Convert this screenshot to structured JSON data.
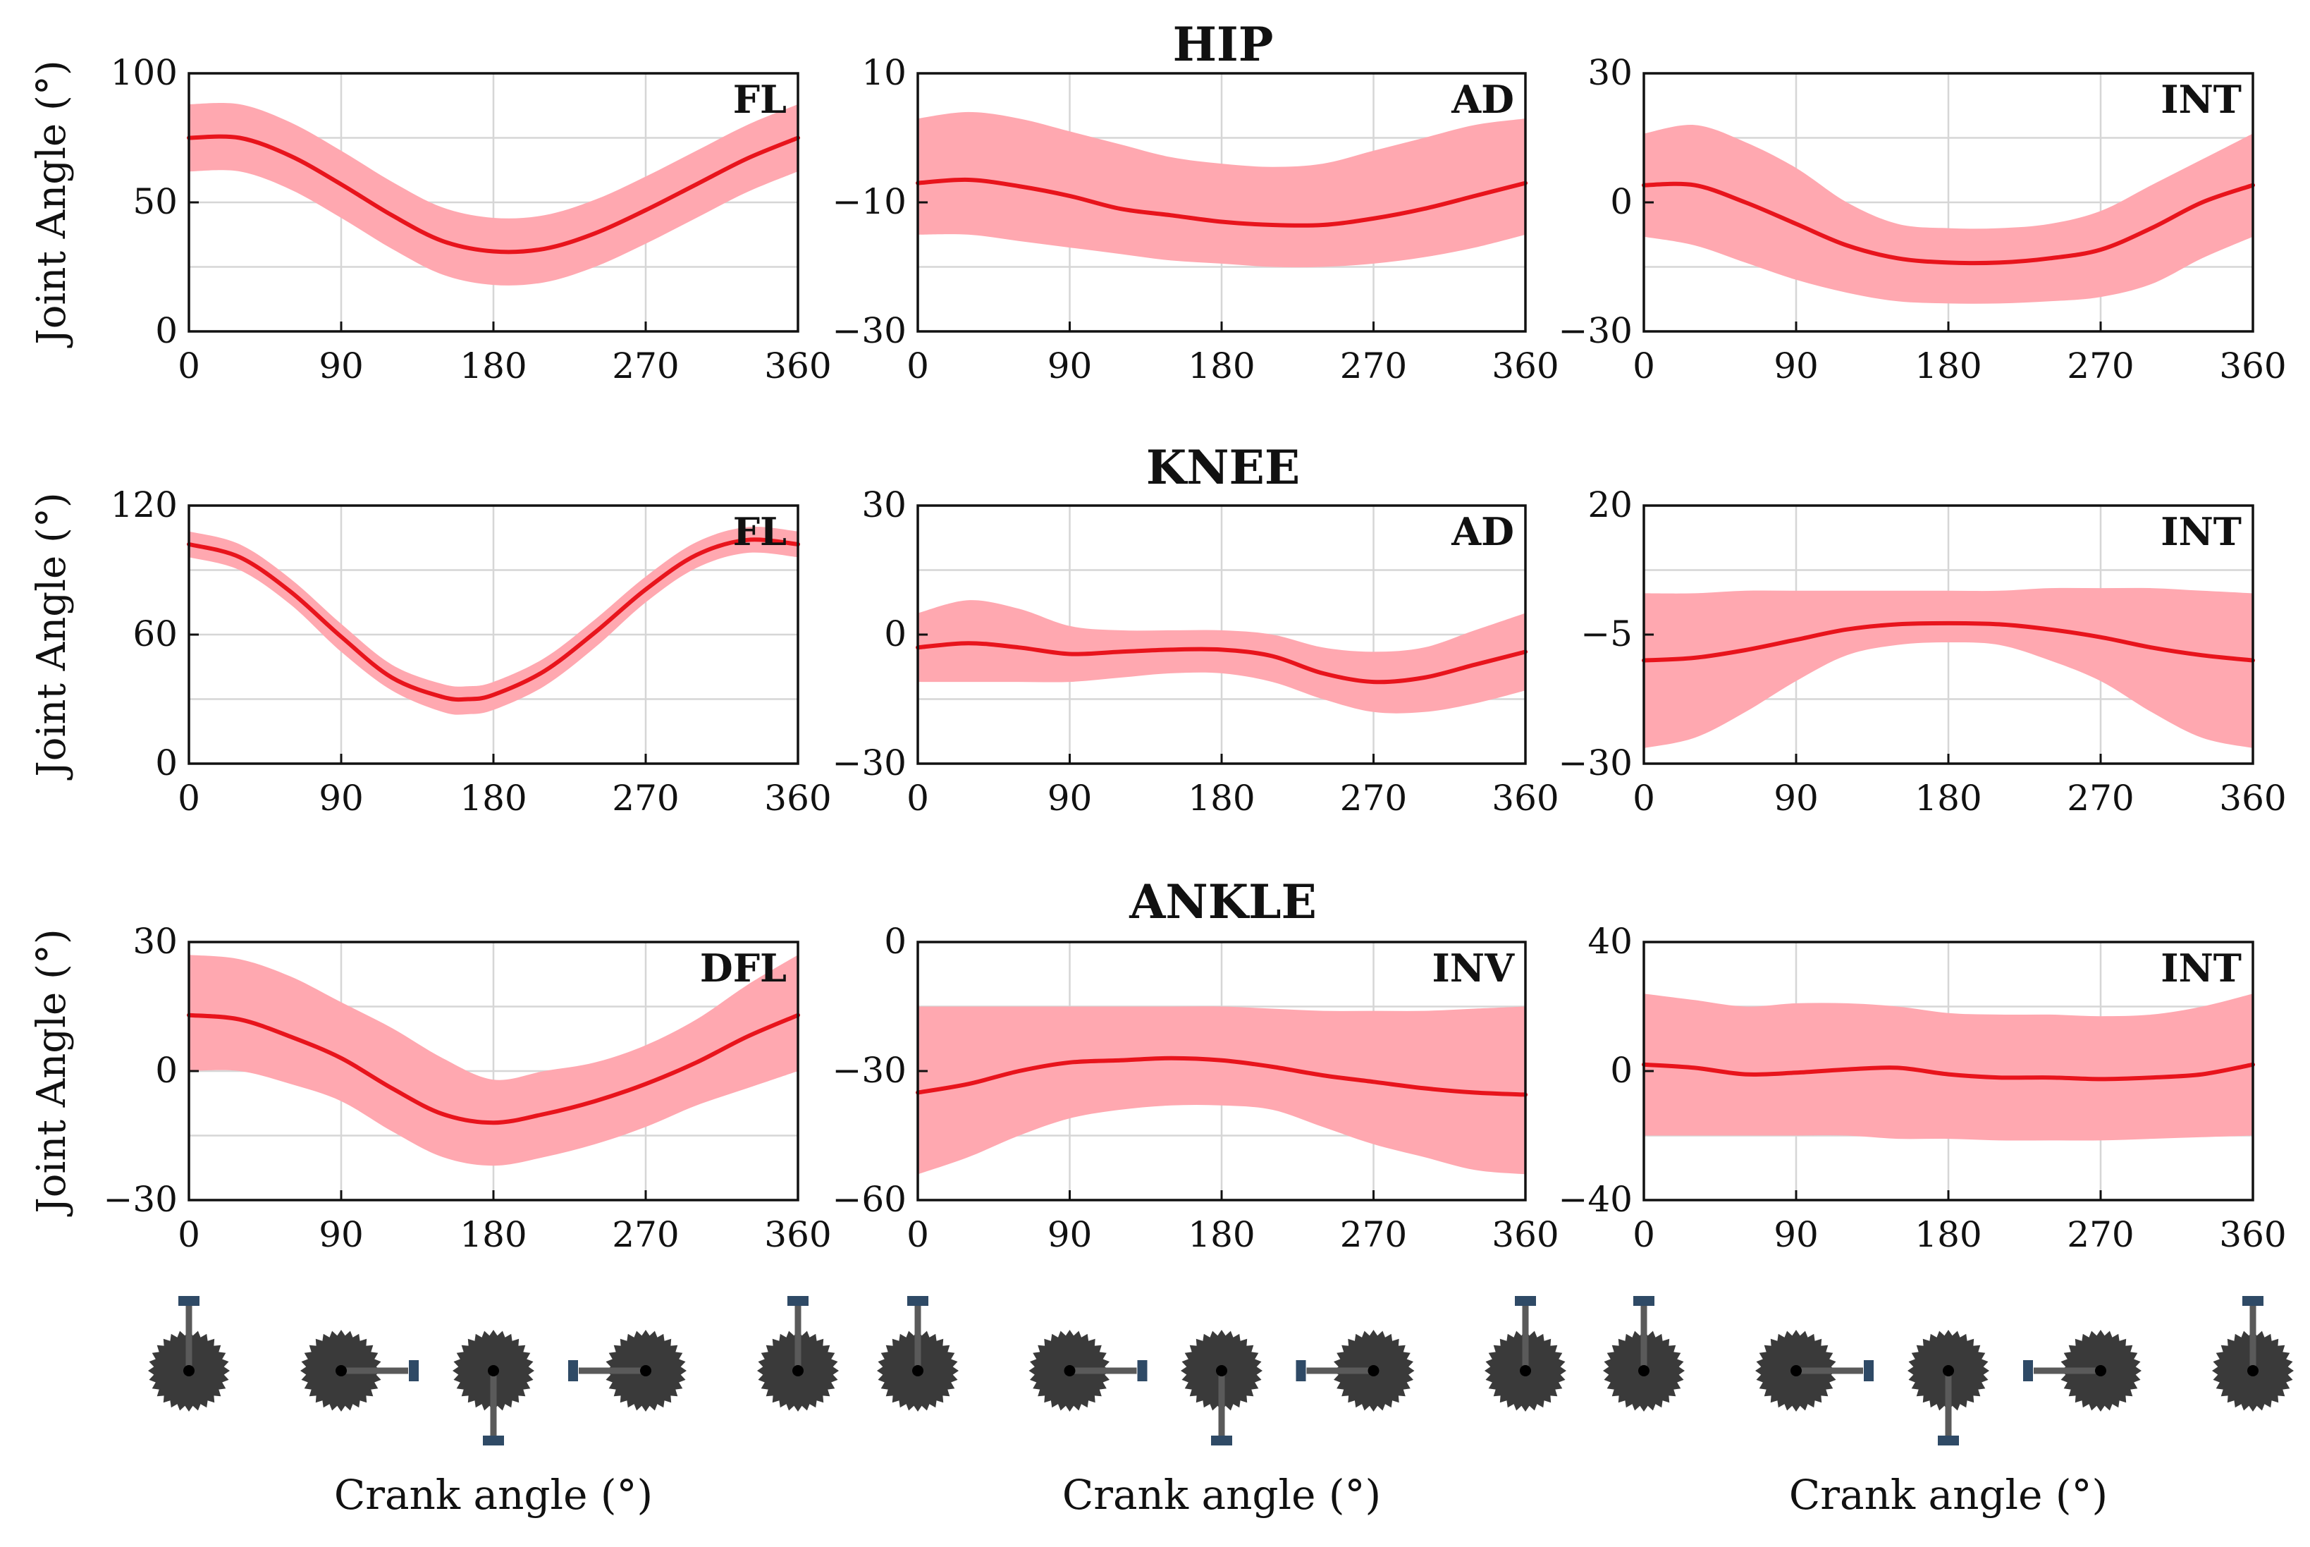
{
  "colors": {
    "mean": "#e8141c",
    "band": "#ffa8b0",
    "crank_disc": "#3a3a3a",
    "crank_arm": "#5a5a5a",
    "pedal": "#2f4a66"
  },
  "y_axis_label": "Joint Angle (°)",
  "x_axis_label": "Crank angle (°)",
  "chart_data": [
    {
      "type": "line",
      "row_title": "HIP",
      "label": "FL",
      "x": [
        0,
        30,
        60,
        90,
        120,
        150,
        180,
        210,
        240,
        270,
        300,
        330,
        360
      ],
      "mean": [
        75,
        75,
        68,
        57,
        45,
        35,
        31,
        32,
        38,
        47,
        57,
        67,
        75
      ],
      "lower": [
        62,
        62,
        55,
        44,
        32,
        22,
        18,
        19,
        25,
        34,
        44,
        54,
        62
      ],
      "upper": [
        88,
        88,
        81,
        70,
        58,
        48,
        44,
        45,
        51,
        60,
        70,
        80,
        88
      ],
      "ylim": [
        0,
        100
      ],
      "yticks": [
        0,
        50,
        100
      ],
      "xlim": [
        0,
        360
      ],
      "xticks": [
        0,
        90,
        180,
        270,
        360
      ]
    },
    {
      "type": "line",
      "label": "AD",
      "x": [
        0,
        30,
        60,
        90,
        120,
        150,
        180,
        210,
        240,
        270,
        300,
        330,
        360
      ],
      "mean": [
        -7,
        -6.5,
        -7.5,
        -9,
        -11,
        -12,
        -13,
        -13.5,
        -13.5,
        -12.5,
        -11,
        -9,
        -7
      ],
      "lower": [
        -15,
        -15,
        -16,
        -17,
        -18,
        -19,
        -19.5,
        -20,
        -20,
        -19.5,
        -18.5,
        -17,
        -15
      ],
      "upper": [
        3,
        4,
        3,
        1,
        -1,
        -3,
        -4,
        -4.5,
        -4,
        -2,
        0,
        2,
        3
      ],
      "ylim": [
        -30,
        10
      ],
      "yticks": [
        -30,
        -10,
        10
      ],
      "xlim": [
        0,
        360
      ],
      "xticks": [
        0,
        90,
        180,
        270,
        360
      ]
    },
    {
      "type": "line",
      "label": "INT",
      "x": [
        0,
        30,
        60,
        90,
        120,
        150,
        180,
        210,
        240,
        270,
        300,
        330,
        360
      ],
      "mean": [
        4,
        4,
        0,
        -5,
        -10,
        -13,
        -14,
        -14,
        -13,
        -11,
        -6,
        0,
        4
      ],
      "lower": [
        -8,
        -10,
        -14,
        -18,
        -21,
        -23,
        -23.5,
        -23.5,
        -23,
        -22,
        -19,
        -13,
        -8
      ],
      "upper": [
        16,
        18,
        14,
        8,
        0,
        -5,
        -6,
        -6,
        -5,
        -2,
        4,
        10,
        16
      ],
      "ylim": [
        -30,
        30
      ],
      "yticks": [
        -30,
        0,
        30
      ],
      "xlim": [
        0,
        360
      ],
      "xticks": [
        0,
        90,
        180,
        270,
        360
      ]
    },
    {
      "type": "line",
      "row_title": "KNEE",
      "label": "FL",
      "x": [
        0,
        30,
        60,
        90,
        120,
        150,
        165,
        180,
        210,
        240,
        270,
        300,
        330,
        360
      ],
      "mean": [
        102,
        96,
        80,
        59,
        40,
        31,
        30,
        32,
        43,
        61,
        81,
        97,
        104,
        102
      ],
      "lower": [
        96,
        90,
        74,
        52,
        34,
        24,
        23,
        25,
        36,
        54,
        75,
        91,
        98,
        96
      ],
      "upper": [
        108,
        102,
        86,
        65,
        46,
        37,
        36,
        38,
        49,
        67,
        87,
        103,
        110,
        108
      ],
      "ylim": [
        0,
        120
      ],
      "yticks": [
        0,
        60,
        120
      ],
      "xlim": [
        0,
        360
      ],
      "xticks": [
        0,
        90,
        180,
        270,
        360
      ]
    },
    {
      "type": "line",
      "label": "AD",
      "x": [
        0,
        30,
        60,
        90,
        120,
        150,
        180,
        210,
        240,
        270,
        300,
        330,
        360
      ],
      "mean": [
        -3,
        -2,
        -3,
        -4.5,
        -4,
        -3.5,
        -3.5,
        -5,
        -9,
        -11,
        -10,
        -7,
        -4
      ],
      "lower": [
        -11,
        -11,
        -11,
        -11,
        -10,
        -9,
        -9,
        -11,
        -15,
        -18,
        -18,
        -16,
        -13
      ],
      "upper": [
        5,
        8,
        6,
        2,
        1,
        1,
        1,
        0,
        -3,
        -4,
        -3,
        1,
        5
      ],
      "ylim": [
        -30,
        30
      ],
      "yticks": [
        -30,
        0,
        30
      ],
      "xlim": [
        0,
        360
      ],
      "xticks": [
        0,
        90,
        180,
        270,
        360
      ]
    },
    {
      "type": "line",
      "label": "INT",
      "x": [
        0,
        30,
        60,
        90,
        120,
        150,
        180,
        210,
        240,
        270,
        300,
        330,
        360
      ],
      "mean": [
        -10,
        -9.5,
        -8,
        -6,
        -4,
        -3,
        -2.8,
        -3,
        -4,
        -5.5,
        -7.5,
        -9,
        -10
      ],
      "lower": [
        -27,
        -25,
        -20,
        -14,
        -9,
        -7,
        -6.5,
        -7,
        -10,
        -14,
        -20,
        -25,
        -27
      ],
      "upper": [
        3,
        3,
        3.5,
        3.5,
        3.5,
        3.5,
        3.5,
        3.5,
        4,
        4,
        4,
        3.5,
        3
      ],
      "ylim": [
        -30,
        20
      ],
      "yticks": [
        -30,
        -5,
        20
      ],
      "xlim": [
        0,
        360
      ],
      "xticks": [
        0,
        90,
        180,
        270,
        360
      ]
    },
    {
      "type": "line",
      "row_title": "ANKLE",
      "label": "DFL",
      "x": [
        0,
        30,
        60,
        90,
        120,
        150,
        180,
        210,
        240,
        270,
        300,
        330,
        360
      ],
      "mean": [
        13,
        12,
        8,
        3,
        -4,
        -10,
        -12,
        -10,
        -7,
        -3,
        2,
        8,
        13
      ],
      "lower": [
        0,
        0,
        -3,
        -7,
        -14,
        -20,
        -22,
        -20,
        -17,
        -13,
        -8,
        -4,
        0
      ],
      "upper": [
        27,
        26,
        22,
        16,
        10,
        3,
        -2,
        0,
        2,
        6,
        12,
        20,
        27
      ],
      "ylim": [
        -30,
        30
      ],
      "yticks": [
        -30,
        0,
        30
      ],
      "xlim": [
        0,
        360
      ],
      "xticks": [
        0,
        90,
        180,
        270,
        360
      ]
    },
    {
      "type": "line",
      "label": "INV",
      "x": [
        0,
        30,
        60,
        90,
        120,
        150,
        180,
        210,
        240,
        270,
        300,
        330,
        360
      ],
      "mean": [
        -35,
        -33,
        -30,
        -28,
        -27.5,
        -27,
        -27.5,
        -29,
        -31,
        -32.5,
        -34,
        -35,
        -35.5
      ],
      "lower": [
        -54,
        -50,
        -45,
        -41,
        -39,
        -38,
        -38,
        -39,
        -43,
        -47,
        -50,
        -53,
        -54
      ],
      "upper": [
        -15,
        -15,
        -15,
        -15,
        -15,
        -15,
        -15,
        -15.5,
        -16,
        -16,
        -16,
        -15.5,
        -15
      ],
      "ylim": [
        -60,
        0
      ],
      "yticks": [
        -60,
        -30,
        0
      ],
      "xlim": [
        0,
        360
      ],
      "xticks": [
        0,
        90,
        180,
        270,
        360
      ]
    },
    {
      "type": "line",
      "label": "INT",
      "x": [
        0,
        30,
        60,
        90,
        120,
        150,
        180,
        210,
        240,
        270,
        300,
        330,
        360
      ],
      "mean": [
        2,
        1,
        -1,
        -0.5,
        0.5,
        1,
        -1,
        -2,
        -2,
        -2.5,
        -2,
        -1,
        2
      ],
      "lower": [
        -20,
        -20,
        -20,
        -20,
        -20,
        -21,
        -21,
        -21.5,
        -21.5,
        -21.5,
        -21,
        -20.5,
        -20
      ],
      "upper": [
        24,
        22,
        20,
        21,
        21,
        20,
        18,
        17.5,
        17.5,
        17,
        17.5,
        20,
        24
      ],
      "ylim": [
        -40,
        40
      ],
      "yticks": [
        -40,
        0,
        40
      ],
      "xlim": [
        0,
        360
      ],
      "xticks": [
        0,
        90,
        180,
        270,
        360
      ]
    }
  ]
}
